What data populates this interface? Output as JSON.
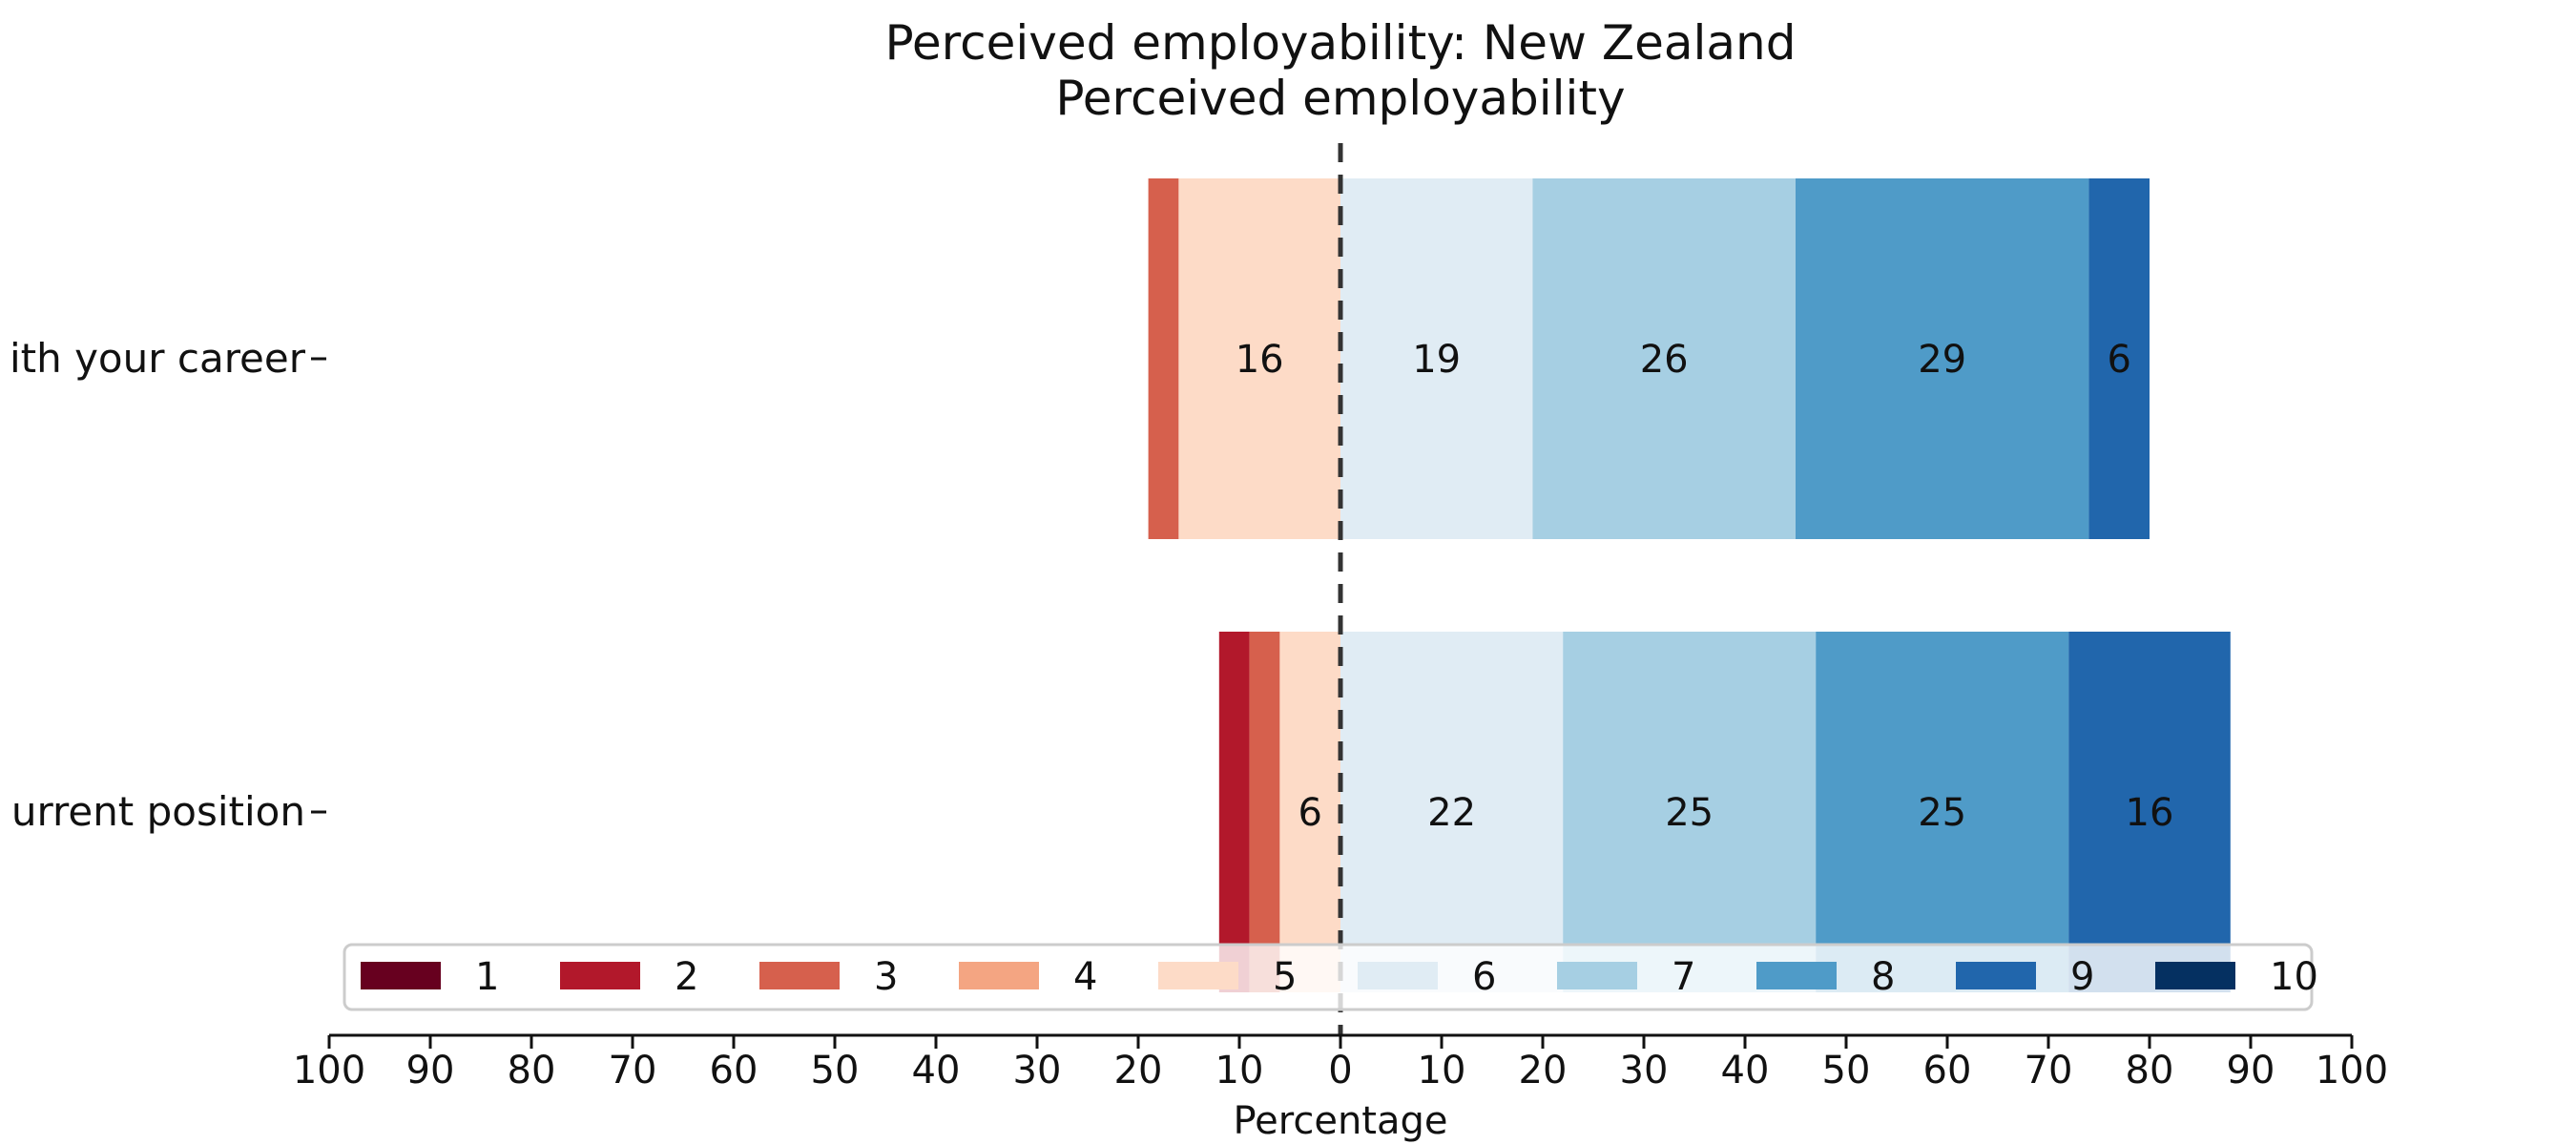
{
  "chart_data": {
    "type": "bar",
    "orientation": "horizontal",
    "stacked": "diverging",
    "title": "Perceived employability: New Zealand",
    "subtitle": "Perceived employability",
    "xlabel": "Percentage",
    "xlim": [
      -100,
      100
    ],
    "x_ticks": [
      -100,
      -90,
      -80,
      -70,
      -60,
      -50,
      -40,
      -30,
      -20,
      -10,
      0,
      10,
      20,
      30,
      40,
      50,
      60,
      70,
      80,
      90,
      100
    ],
    "x_tick_labels": [
      "100",
      "90",
      "80",
      "70",
      "60",
      "50",
      "40",
      "30",
      "20",
      "10",
      "0",
      "10",
      "20",
      "30",
      "40",
      "50",
      "60",
      "70",
      "80",
      "90",
      "100"
    ],
    "categories": [
      "ith your career",
      "urrent position"
    ],
    "series": [
      {
        "name": "1",
        "color": "#67001f",
        "values": [
          0,
          0
        ]
      },
      {
        "name": "2",
        "color": "#b2182b",
        "values": [
          0,
          3
        ]
      },
      {
        "name": "3",
        "color": "#d6604d",
        "values": [
          3,
          3
        ]
      },
      {
        "name": "4",
        "color": "#f4a582",
        "values": [
          0,
          0
        ]
      },
      {
        "name": "5",
        "color": "#fddbc7",
        "values": [
          16,
          6
        ]
      },
      {
        "name": "6",
        "color": "#e0ecf4",
        "values": [
          19,
          22
        ]
      },
      {
        "name": "7",
        "color": "#a6cfe3",
        "values": [
          26,
          25
        ]
      },
      {
        "name": "8",
        "color": "#4f9bc8",
        "values": [
          29,
          25
        ]
      },
      {
        "name": "9",
        "color": "#2166ac",
        "values": [
          6,
          16
        ]
      },
      {
        "name": "10",
        "color": "#053061",
        "values": [
          0,
          0
        ]
      }
    ],
    "negative_series": [
      "1",
      "2",
      "3",
      "4",
      "5"
    ],
    "data_labels": [
      {
        "category": "ith your career",
        "series": "5",
        "text": "16"
      },
      {
        "category": "ith your career",
        "series": "6",
        "text": "19"
      },
      {
        "category": "ith your career",
        "series": "7",
        "text": "26"
      },
      {
        "category": "ith your career",
        "series": "8",
        "text": "29"
      },
      {
        "category": "ith your career",
        "series": "9",
        "text": "6"
      },
      {
        "category": "urrent position",
        "series": "5",
        "text": "6"
      },
      {
        "category": "urrent position",
        "series": "6",
        "text": "22"
      },
      {
        "category": "urrent position",
        "series": "7",
        "text": "25"
      },
      {
        "category": "urrent position",
        "series": "8",
        "text": "25"
      },
      {
        "category": "urrent position",
        "series": "9",
        "text": "16"
      }
    ],
    "zero_line": "dashed",
    "grid": false,
    "legend_position": "bottom"
  }
}
